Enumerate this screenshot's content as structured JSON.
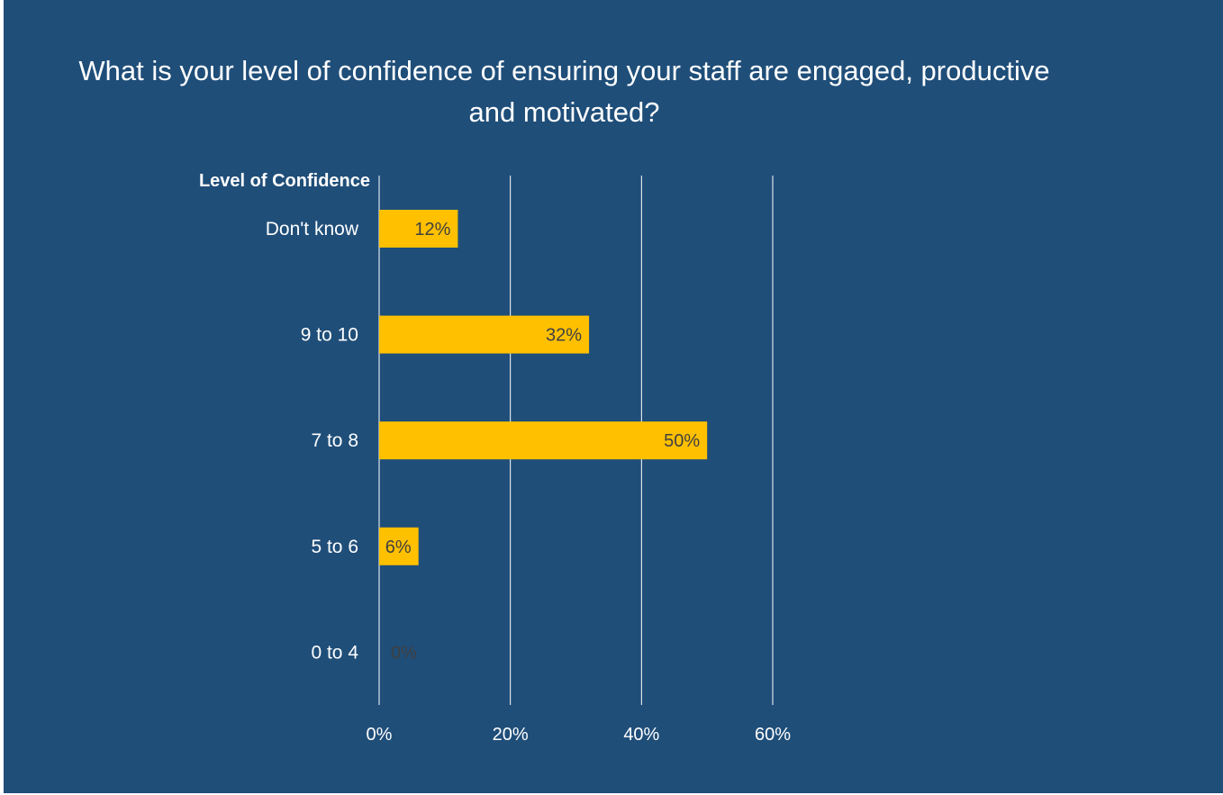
{
  "colors": {
    "background": "#1f4e79",
    "bar": "#ffc000",
    "gridline": "#ffffff",
    "text": "#ffffff",
    "data_label": "#404040"
  },
  "chart_data": {
    "type": "bar",
    "orientation": "horizontal",
    "title_lines": [
      "What is your level of confidence of ensuring your staff are engaged, productive",
      "and motivated?"
    ],
    "category_axis_title": "Level of Confidence",
    "categories": [
      "Don't know",
      "9 to 10",
      "7 to 8",
      "5 to 6",
      "0 to 4"
    ],
    "values": [
      12,
      32,
      50,
      6,
      0
    ],
    "data_labels": [
      "12%",
      "32%",
      "50%",
      "6%",
      "0%"
    ],
    "xlim": [
      0,
      60
    ],
    "x_ticks": [
      0,
      20,
      40,
      60
    ],
    "x_tick_labels": [
      "0%",
      "20%",
      "40%",
      "60%"
    ],
    "grid": true,
    "legend": "none"
  }
}
